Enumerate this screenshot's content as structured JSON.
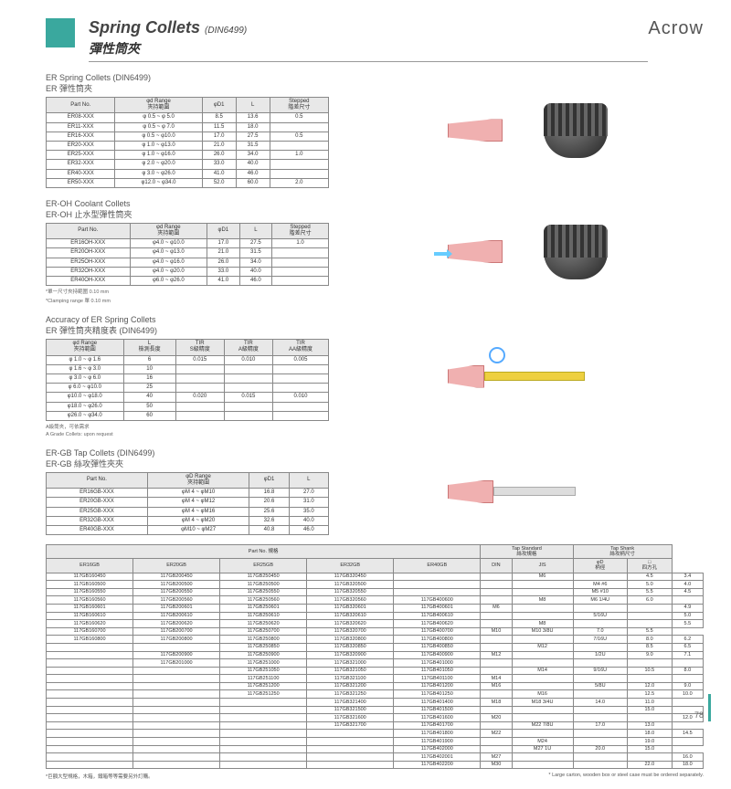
{
  "header": {
    "title_en": "Spring Collets",
    "title_spec": "(DIN6499)",
    "title_cn": "彈性筒夾",
    "brand": "Acrow"
  },
  "page_number": "78",
  "section1": {
    "title_en": "ER Spring Collets (DIN6499)",
    "title_cn": "ER 彈性筒夾",
    "cols": [
      "Part No.",
      "φd Range\n夾持範圍",
      "φD1",
      "L",
      "Stepped\n階差尺寸"
    ],
    "rows": [
      [
        "ER08-XXX",
        "φ 0.5 ~ φ 5.0",
        "8.5",
        "13.6",
        "0.5"
      ],
      [
        "ER11-XXX",
        "φ 0.5 ~ φ 7.0",
        "11.5",
        "18.0",
        ""
      ],
      [
        "ER16-XXX",
        "φ 0.5 ~ φ10.0",
        "17.0",
        "27.5",
        "0.5"
      ],
      [
        "ER20-XXX",
        "φ 1.0 ~ φ13.0",
        "21.0",
        "31.5",
        ""
      ],
      [
        "ER25-XXX",
        "φ 1.0 ~ φ16.0",
        "26.0",
        "34.0",
        "1.0"
      ],
      [
        "ER32-XXX",
        "φ 2.0 ~ φ20.0",
        "33.0",
        "40.0",
        ""
      ],
      [
        "ER40-XXX",
        "φ 3.0 ~ φ26.0",
        "41.0",
        "46.0",
        ""
      ],
      [
        "ER50-XXX",
        "φ12.0 ~ φ34.0",
        "52.0",
        "60.0",
        "2.0"
      ]
    ]
  },
  "section2": {
    "title_en": "ER-OH Coolant Collets",
    "title_cn": "ER-OH 止水型彈性筒夾",
    "cols": [
      "Part No.",
      "φd Range\n夾持範圍",
      "φD1",
      "L",
      "Stepped\n階差尺寸"
    ],
    "rows": [
      [
        "ER16OH-XXX",
        "φ4.0 ~ φ10.0",
        "17.0",
        "27.5",
        "1.0"
      ],
      [
        "ER20OH-XXX",
        "φ4.0 ~ φ13.0",
        "21.0",
        "31.5",
        ""
      ],
      [
        "ER25OH-XXX",
        "φ4.0 ~ φ16.0",
        "26.0",
        "34.0",
        ""
      ],
      [
        "ER32OH-XXX",
        "φ4.0 ~ φ20.0",
        "33.0",
        "40.0",
        ""
      ],
      [
        "ER40OH-XXX",
        "φ6.0 ~ φ26.0",
        "41.0",
        "46.0",
        ""
      ]
    ],
    "note1": "*單一尺寸夾持範圍 0.10 mm",
    "note2": "*Clamping range 單 0.10 mm"
  },
  "section3": {
    "title_en": "Accuracy of ER Spring Collets",
    "title_cn": "ER 彈性筒夾精度表 (DIN6499)",
    "cols": [
      "φd Range\n夾持範圍",
      "L\n檢測長度",
      "TIR\nS級精度",
      "TIR\nA級精度",
      "TIR\nAA級精度"
    ],
    "rows": [
      [
        "φ 1.0 ~ φ 1.6",
        "6",
        "0.015",
        "0.010",
        "0.005"
      ],
      [
        "φ 1.6 ~ φ 3.0",
        "10",
        "",
        "",
        ""
      ],
      [
        "φ 3.0 ~ φ 6.0",
        "16",
        "",
        "",
        ""
      ],
      [
        "φ 6.0 ~ φ10.0",
        "25",
        "",
        "",
        ""
      ],
      [
        "φ10.0 ~ φ18.0",
        "40",
        "0.020",
        "0.015",
        "0.010"
      ],
      [
        "φ18.0 ~ φ26.0",
        "50",
        "",
        "",
        ""
      ],
      [
        "φ26.0 ~ φ34.0",
        "60",
        "",
        "",
        ""
      ]
    ],
    "note1": "A級筒夾，可依需求",
    "note2": "A Grade Collets: upon request"
  },
  "section4": {
    "title_en": "ER-GB  Tap Collets (DIN6499)",
    "title_cn": "ER-GB 絲攻彈性夾夾",
    "cols": [
      "Part No.",
      "φD Range\n夾持範圍",
      "φD1",
      "L"
    ],
    "rows": [
      [
        "ER16GB-XXX",
        "φM 4 ~ φM10",
        "16.8",
        "27.0"
      ],
      [
        "ER20GB-XXX",
        "φM 4 ~ φM12",
        "20.6",
        "31.0"
      ],
      [
        "ER25GB-XXX",
        "φM 4 ~ φM16",
        "25.6",
        "35.0"
      ],
      [
        "ER32GB-XXX",
        "φM 4 ~ φM20",
        "32.6",
        "40.0"
      ],
      [
        "ER40GB-XXX",
        "φM10 ~ φM27",
        "40.8",
        "46.0"
      ]
    ]
  },
  "bigtable": {
    "head1": [
      "Part No. 規格",
      "Tap Standard\n絲攻規格",
      "Tap Shank\n絲攻柄尺寸"
    ],
    "head2": [
      "ER16GB",
      "ER20GB",
      "ER25GB",
      "ER32GB",
      "ER40GB",
      "DIN",
      "JIS",
      "φD\n柄徑",
      "□\n四方孔"
    ],
    "rows": [
      [
        "117GB160450",
        "117GB200450",
        "117GB250450",
        "117GB320450",
        "",
        "",
        "M6",
        "",
        "4.5",
        "3.4"
      ],
      [
        "117GB160500",
        "117GB200500",
        "117GB250500",
        "117GB320500",
        "",
        "",
        "",
        "M4 #6",
        "5.0",
        "4.0"
      ],
      [
        "117GB160550",
        "117GB200550",
        "117GB250550",
        "117GB320550",
        "",
        "",
        "",
        "M5 #10",
        "5.5",
        "4.5"
      ],
      [
        "117GB160560",
        "117GB200560",
        "117GB250560",
        "117GB320560",
        "117GB400600",
        "",
        "M8",
        "M6 1/4U",
        "6.0",
        ""
      ],
      [
        "117GB160601",
        "117GB200601",
        "117GB250601",
        "117GB320601",
        "117GB400601",
        "M6",
        "",
        "",
        "",
        "4.9"
      ],
      [
        "117GB160610",
        "117GB200610",
        "117GB250610",
        "117GB320610",
        "117GB400610",
        "",
        "",
        "5/16U",
        "",
        "5.0"
      ],
      [
        "117GB160620",
        "117GB200620",
        "117GB250620",
        "117GB320620",
        "117GB400620",
        "",
        "M8",
        "",
        "",
        "5.5"
      ],
      [
        "117GB160700",
        "117GB200700",
        "117GB250700",
        "117GB320700",
        "117GB400700",
        "M10",
        "M10 3/8U",
        "7.0",
        "5.5"
      ],
      [
        "117GB160800",
        "117GB200800",
        "117GB250800",
        "117GB320800",
        "117GB400800",
        "",
        "",
        "7/16U",
        "8.0",
        "6.2"
      ],
      [
        "",
        "",
        "117GB250850",
        "117GB320850",
        "117GB400850",
        "",
        "M12",
        "",
        "8.5",
        "6.5"
      ],
      [
        "",
        "117GB200900",
        "117GB250900",
        "117GB320900",
        "117GB400900",
        "M12",
        "",
        "1/2U",
        "9.0",
        "7.1"
      ],
      [
        "",
        "117GB201000",
        "117GB251000",
        "117GB321000",
        "117GB401000",
        "",
        "",
        "",
        "",
        ""
      ],
      [
        "",
        "",
        "117GB251050",
        "117GB321050",
        "117GB401050",
        "",
        "M14",
        "9/16U",
        "10.5",
        "8.0"
      ],
      [
        "",
        "",
        "117GB251100",
        "117GB321100",
        "117GB401100",
        "M14",
        "",
        "",
        "",
        ""
      ],
      [
        "",
        "",
        "117GB251200",
        "117GB321200",
        "117GB401200",
        "M16",
        "",
        "5/8U",
        "12.0",
        "9.0"
      ],
      [
        "",
        "",
        "117GB251250",
        "117GB321250",
        "117GB401250",
        "",
        "M16",
        "",
        "12.5",
        "10.0"
      ],
      [
        "",
        "",
        "",
        "117GB321400",
        "117GB401400",
        "M18",
        "M18 3/4U",
        "14.0",
        "11.0"
      ],
      [
        "",
        "",
        "",
        "117GB321500",
        "117GB401500",
        "",
        "",
        "",
        "15.0",
        ""
      ],
      [
        "",
        "",
        "",
        "117GB321600",
        "117GB401600",
        "M20",
        "",
        "",
        "",
        "12.0"
      ],
      [
        "",
        "",
        "",
        "117GB321700",
        "117GB401700",
        "",
        "M22 7/8U",
        "17.0",
        "13.0"
      ],
      [
        "",
        "",
        "",
        "",
        "117GB401800",
        "M22",
        "",
        "",
        "18.0",
        "14.5"
      ],
      [
        "",
        "",
        "",
        "",
        "117GB401900",
        "",
        "M24",
        "",
        "19.0",
        ""
      ],
      [
        "",
        "",
        "",
        "",
        "117GB402000",
        "",
        "M27 1U",
        "20.0",
        "15.0"
      ],
      [
        "",
        "",
        "",
        "",
        "117GB402001",
        "M27",
        "",
        "",
        "",
        "16.0"
      ],
      [
        "",
        "",
        "",
        "",
        "117GB402200",
        "M30",
        "",
        "",
        "22.0",
        "18.0"
      ]
    ]
  },
  "footer": {
    "note_cn": "*巨額大型規格，木箱，鐵箱等等需要另外訂購。",
    "note_en": "* Large carton, wooden box or steel case must be ordered separately."
  }
}
